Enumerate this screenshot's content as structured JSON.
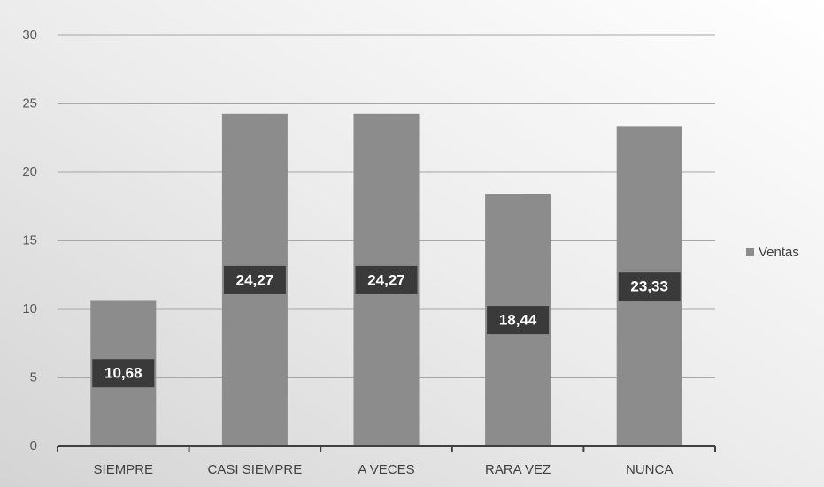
{
  "chart_data": {
    "type": "bar",
    "categories": [
      "SIEMPRE",
      "CASI SIEMPRE",
      "A VECES",
      "RARA VEZ",
      "NUNCA"
    ],
    "series": [
      {
        "name": "Ventas",
        "color": "#8c8c8c",
        "values": [
          10.68,
          24.27,
          24.27,
          18.44,
          23.33
        ],
        "value_labels": [
          "10,68",
          "24,27",
          "24,27",
          "18,44",
          "23,33"
        ]
      }
    ],
    "ylim": [
      0,
      30
    ],
    "yticks": [
      0,
      5,
      10,
      15,
      20,
      25,
      30
    ],
    "grid": true,
    "legend": "right"
  }
}
